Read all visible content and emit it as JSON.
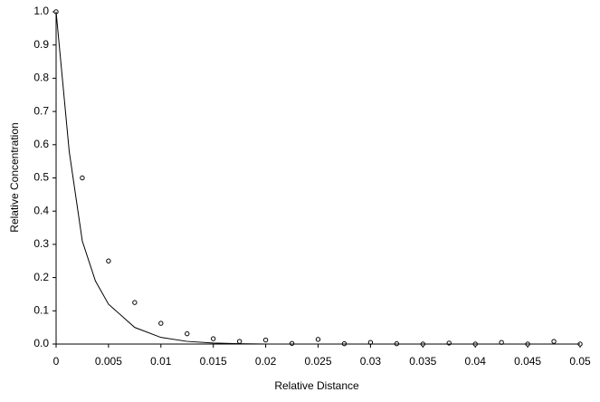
{
  "chart_data": {
    "type": "scatter",
    "x_label": "Relative Distance",
    "y_label": "Relative Concentration",
    "xlim": [
      0,
      0.05
    ],
    "ylim": [
      0,
      1
    ],
    "xticks": [
      0,
      0.005,
      0.01,
      0.015,
      0.02,
      0.025,
      0.03,
      0.035,
      0.04,
      0.045,
      0.05
    ],
    "yticks": [
      {
        "value": 0,
        "label": "0.0"
      },
      0.1,
      0.2,
      0.3,
      0.4,
      0.5,
      0.6,
      0.7,
      0.8,
      0.9,
      {
        "value": 1,
        "label": "1.0"
      }
    ],
    "series": [
      {
        "type": "scatter",
        "color": "#000000",
        "x": [
          0,
          0.0025,
          0.005,
          0.0075,
          0.01,
          0.0125,
          0.015,
          0.0175,
          0.02,
          0.0225,
          0.025,
          0.0275,
          0.03,
          0.0325,
          0.035,
          0.0375,
          0.04,
          0.0425,
          0.045,
          0.0475,
          0.05
        ],
        "values": [
          1,
          0.5,
          0.25,
          0.125,
          0.0625,
          0.031,
          0.016,
          0.008,
          0.012,
          0.002,
          0.014,
          0.001,
          0.005,
          0.001,
          0,
          0.003,
          0,
          0.005,
          0,
          0.008,
          0
        ]
      },
      {
        "type": "line",
        "color": "#000000",
        "x": [
          0,
          0.00125,
          0.0025,
          0.00375,
          0.005,
          0.0075,
          0.01,
          0.0125,
          0.015,
          0.0175,
          0.02,
          0.03,
          0.04,
          0.05
        ],
        "values": [
          1,
          0.58,
          0.31,
          0.19,
          0.12,
          0.05,
          0.02,
          0.008,
          0.003,
          0.001,
          0,
          0,
          0,
          0
        ]
      }
    ]
  }
}
